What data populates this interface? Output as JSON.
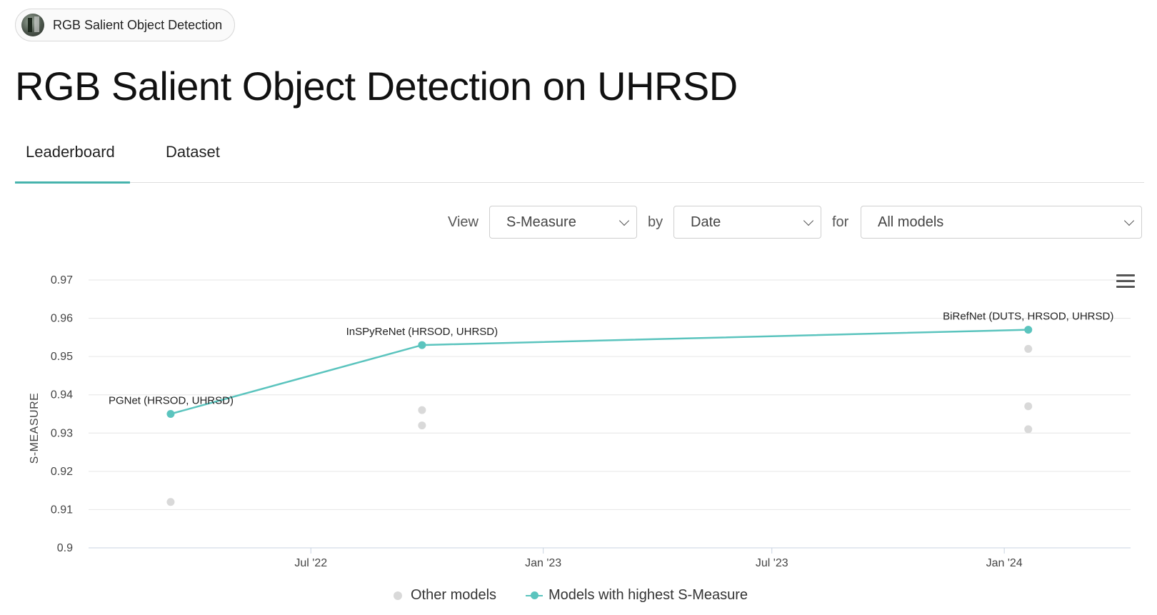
{
  "chip": {
    "label": "RGB Salient Object Detection",
    "icon": "task-thumbnail-icon"
  },
  "page_title": "RGB Salient Object Detection on UHRSD",
  "tabs": [
    {
      "label": "Leaderboard",
      "active": true
    },
    {
      "label": "Dataset",
      "active": false
    }
  ],
  "controls": {
    "view_label": "View",
    "view_value": "S-Measure",
    "by_label": "by",
    "by_value": "Date",
    "for_label": "for",
    "for_value": "All models"
  },
  "colors": {
    "accent": "#5bc4be",
    "other": "#d9d9d9"
  },
  "chart_data": {
    "type": "scatter",
    "ylabel": "S-MEASURE",
    "xlabel": "",
    "ylim": [
      0.9,
      0.97
    ],
    "yticks": [
      "0.97",
      "0.96",
      "0.95",
      "0.94",
      "0.93",
      "0.92",
      "0.91",
      "0.9"
    ],
    "xticks": [
      "Jul '22",
      "Jan '23",
      "Jul '23",
      "Jan '24"
    ],
    "xtick_dates": [
      "2022-07-01",
      "2023-01-01",
      "2023-07-01",
      "2024-01-01"
    ],
    "xlim": [
      "2022-01-06",
      "2024-04-10"
    ],
    "grid": true,
    "legend_position": "bottom",
    "series": [
      {
        "name": "Other models",
        "color": "#d9d9d9",
        "points": [
          {
            "date": "2022-03-12",
            "y": 0.912
          },
          {
            "date": "2022-09-27",
            "y": 0.936
          },
          {
            "date": "2022-09-27",
            "y": 0.932
          },
          {
            "date": "2024-01-20",
            "y": 0.952
          },
          {
            "date": "2024-01-20",
            "y": 0.937
          },
          {
            "date": "2024-01-20",
            "y": 0.931
          }
        ]
      },
      {
        "name": "Models with highest S-Measure",
        "color": "#5bc4be",
        "points": [
          {
            "date": "2022-03-12",
            "y": 0.935,
            "label": "PGNet (HRSOD, UHRSD)"
          },
          {
            "date": "2022-09-27",
            "y": 0.953,
            "label": "InSPyReNet (HRSOD, UHRSD)"
          },
          {
            "date": "2024-01-20",
            "y": 0.957,
            "label": "BiRefNet (DUTS, HRSOD, UHRSD)"
          }
        ]
      }
    ]
  }
}
